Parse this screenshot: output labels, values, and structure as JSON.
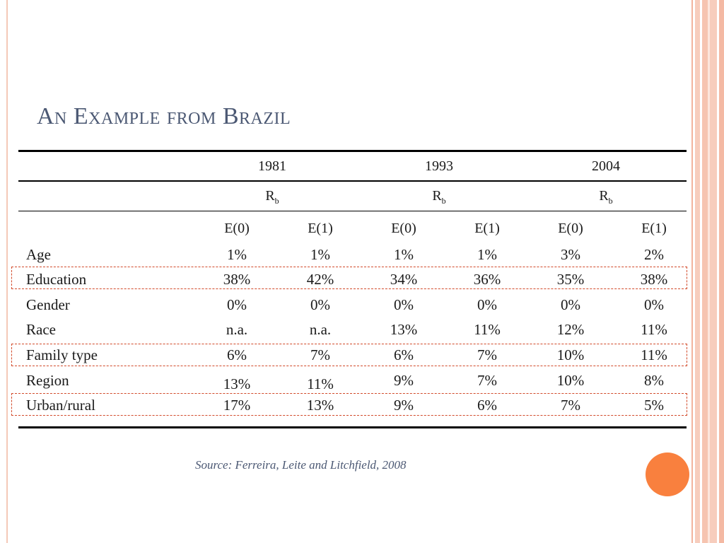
{
  "slide": {
    "title": "An Example from Brazil",
    "source": "Source: Ferreira, Leite and Litchfield, 2008"
  },
  "table": {
    "years": [
      "1981",
      "1993",
      "2004"
    ],
    "rb_main": "R",
    "rb_sub": "b",
    "subheaders": [
      "E(0)",
      "E(1)",
      "E(0)",
      "E(1)",
      "E(0)",
      "E(1)"
    ],
    "rows": [
      {
        "label": "Age",
        "values": [
          "1%",
          "1%",
          "1%",
          "1%",
          "3%",
          "2%"
        ]
      },
      {
        "label": "Education",
        "values": [
          "38%",
          "42%",
          "34%",
          "36%",
          "35%",
          "38%"
        ]
      },
      {
        "label": "Gender",
        "values": [
          "0%",
          "0%",
          "0%",
          "0%",
          "0%",
          "0%"
        ]
      },
      {
        "label": "Race",
        "values": [
          "n.a.",
          "n.a.",
          "13%",
          "11%",
          "12%",
          "11%"
        ]
      },
      {
        "label": "Family type",
        "values": [
          "6%",
          "7%",
          "6%",
          "7%",
          "10%",
          "11%"
        ]
      },
      {
        "label": "Region",
        "values": [
          "13%",
          "11%",
          "9%",
          "7%",
          "10%",
          "8%"
        ]
      },
      {
        "label": "Urban/rural",
        "values": [
          "17%",
          "13%",
          "9%",
          "6%",
          "7%",
          "5%"
        ]
      }
    ],
    "highlighted_rows": [
      "Education",
      "Family type",
      "Urban/rural"
    ]
  },
  "colors": {
    "title": "#4b5873",
    "accent_circle": "#f9803e",
    "highlight_border": "#d24a2a"
  }
}
